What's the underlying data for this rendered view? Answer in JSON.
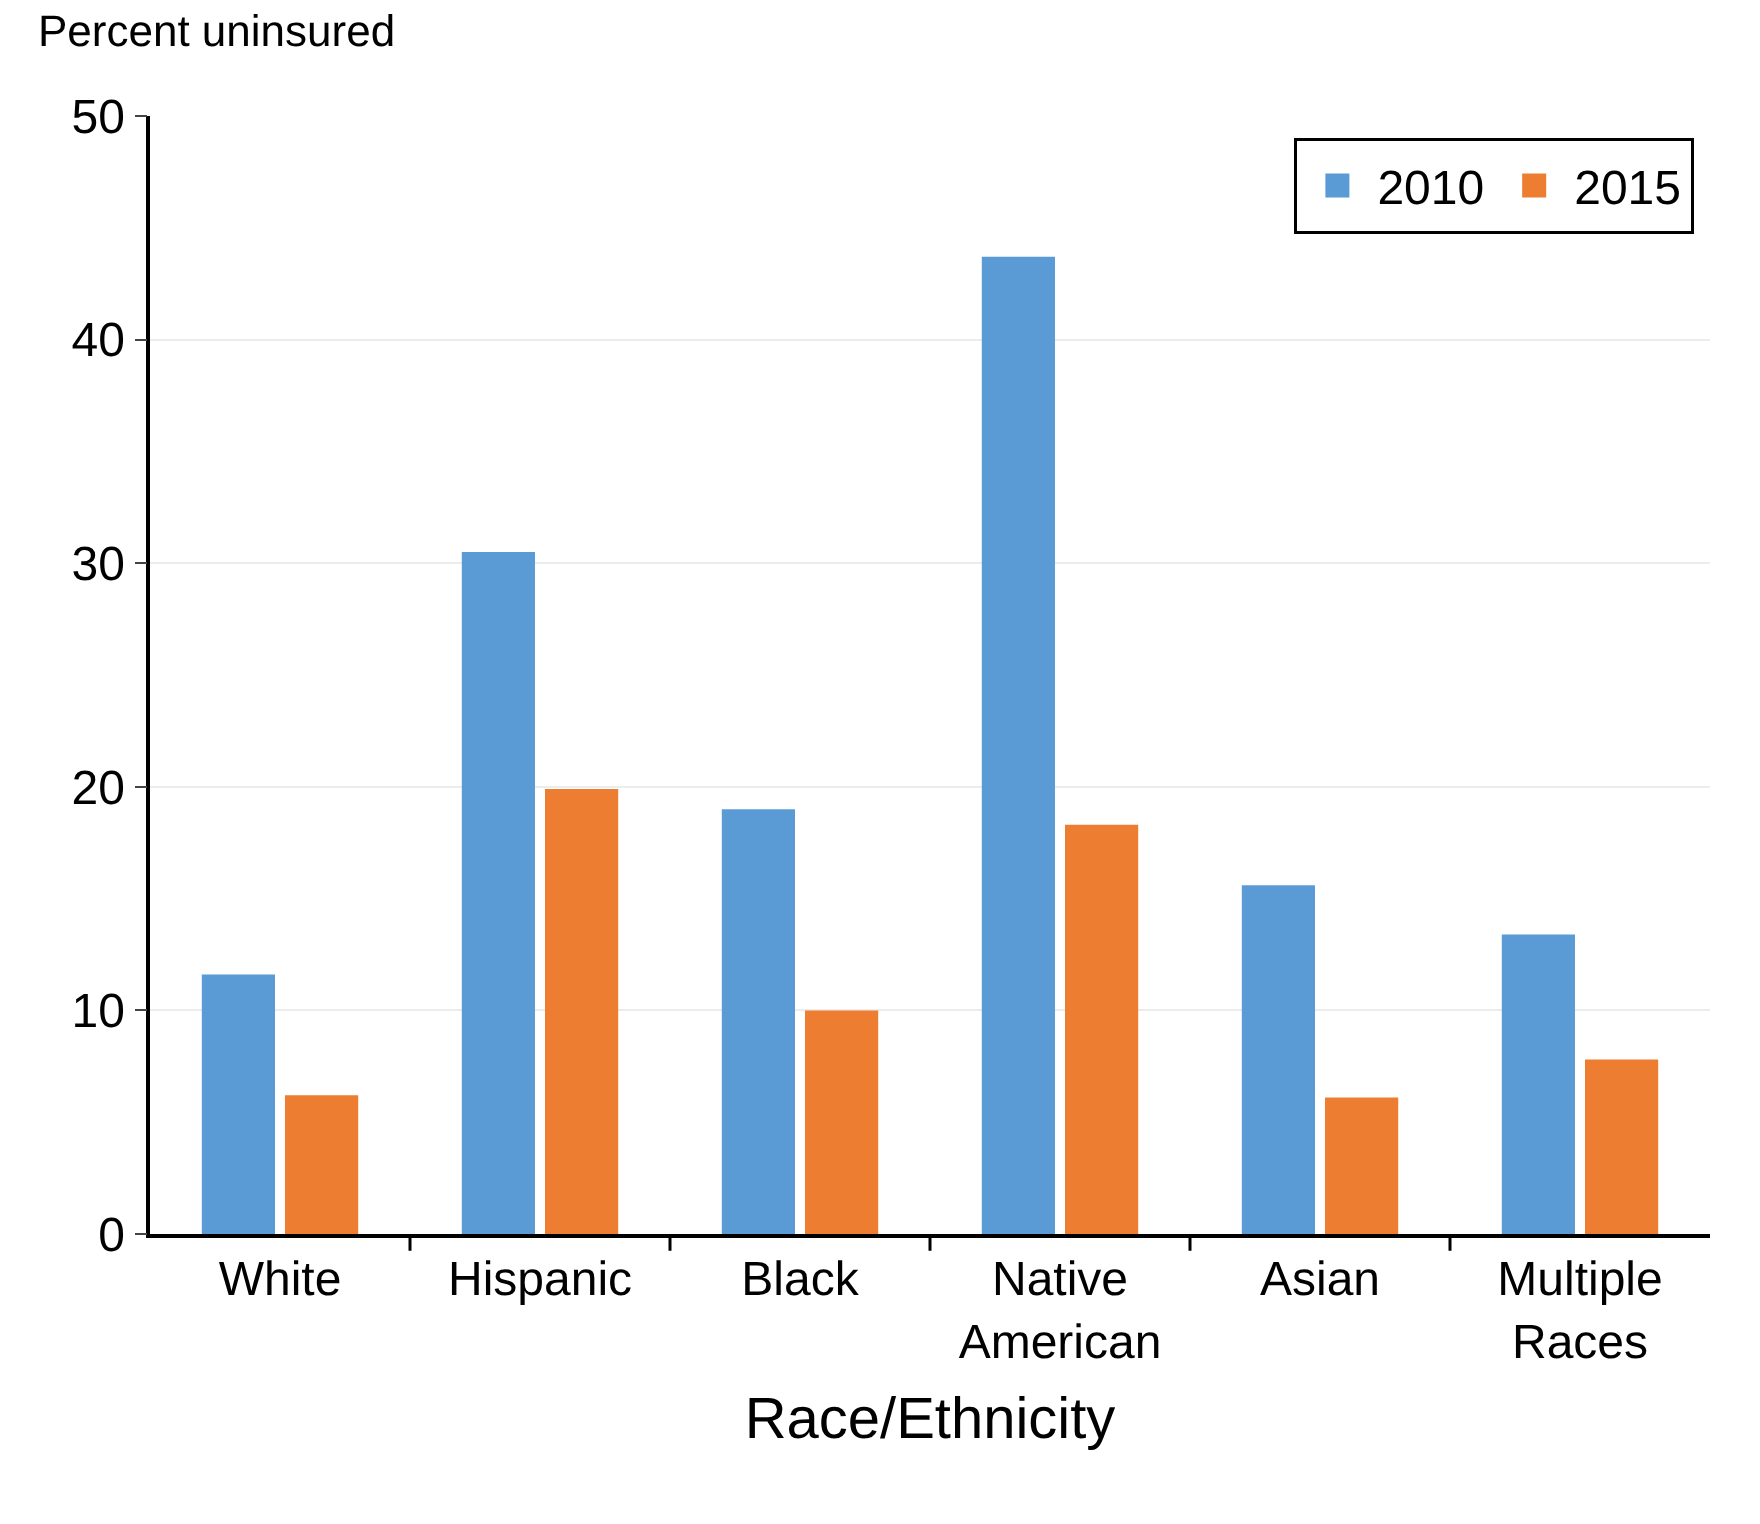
{
  "chart_data": {
    "type": "bar",
    "ylabel": "Percent uninsured",
    "xlabel": "Race/Ethnicity",
    "categories": [
      "White",
      "Hispanic",
      "Black",
      "Native\nAmerican",
      "Asian",
      "Multiple\nRaces"
    ],
    "series": [
      {
        "name": "2010",
        "color": "#5b9bd5",
        "values": [
          11.6,
          30.5,
          19.0,
          43.7,
          15.6,
          13.4
        ]
      },
      {
        "name": "2015",
        "color": "#ed7d31",
        "values": [
          6.2,
          19.9,
          10.0,
          18.3,
          6.1,
          7.8
        ]
      }
    ],
    "ylim": [
      0,
      50
    ],
    "yticks": [
      0,
      10,
      20,
      30,
      40,
      50
    ],
    "grid": "y",
    "legend": "top right"
  }
}
